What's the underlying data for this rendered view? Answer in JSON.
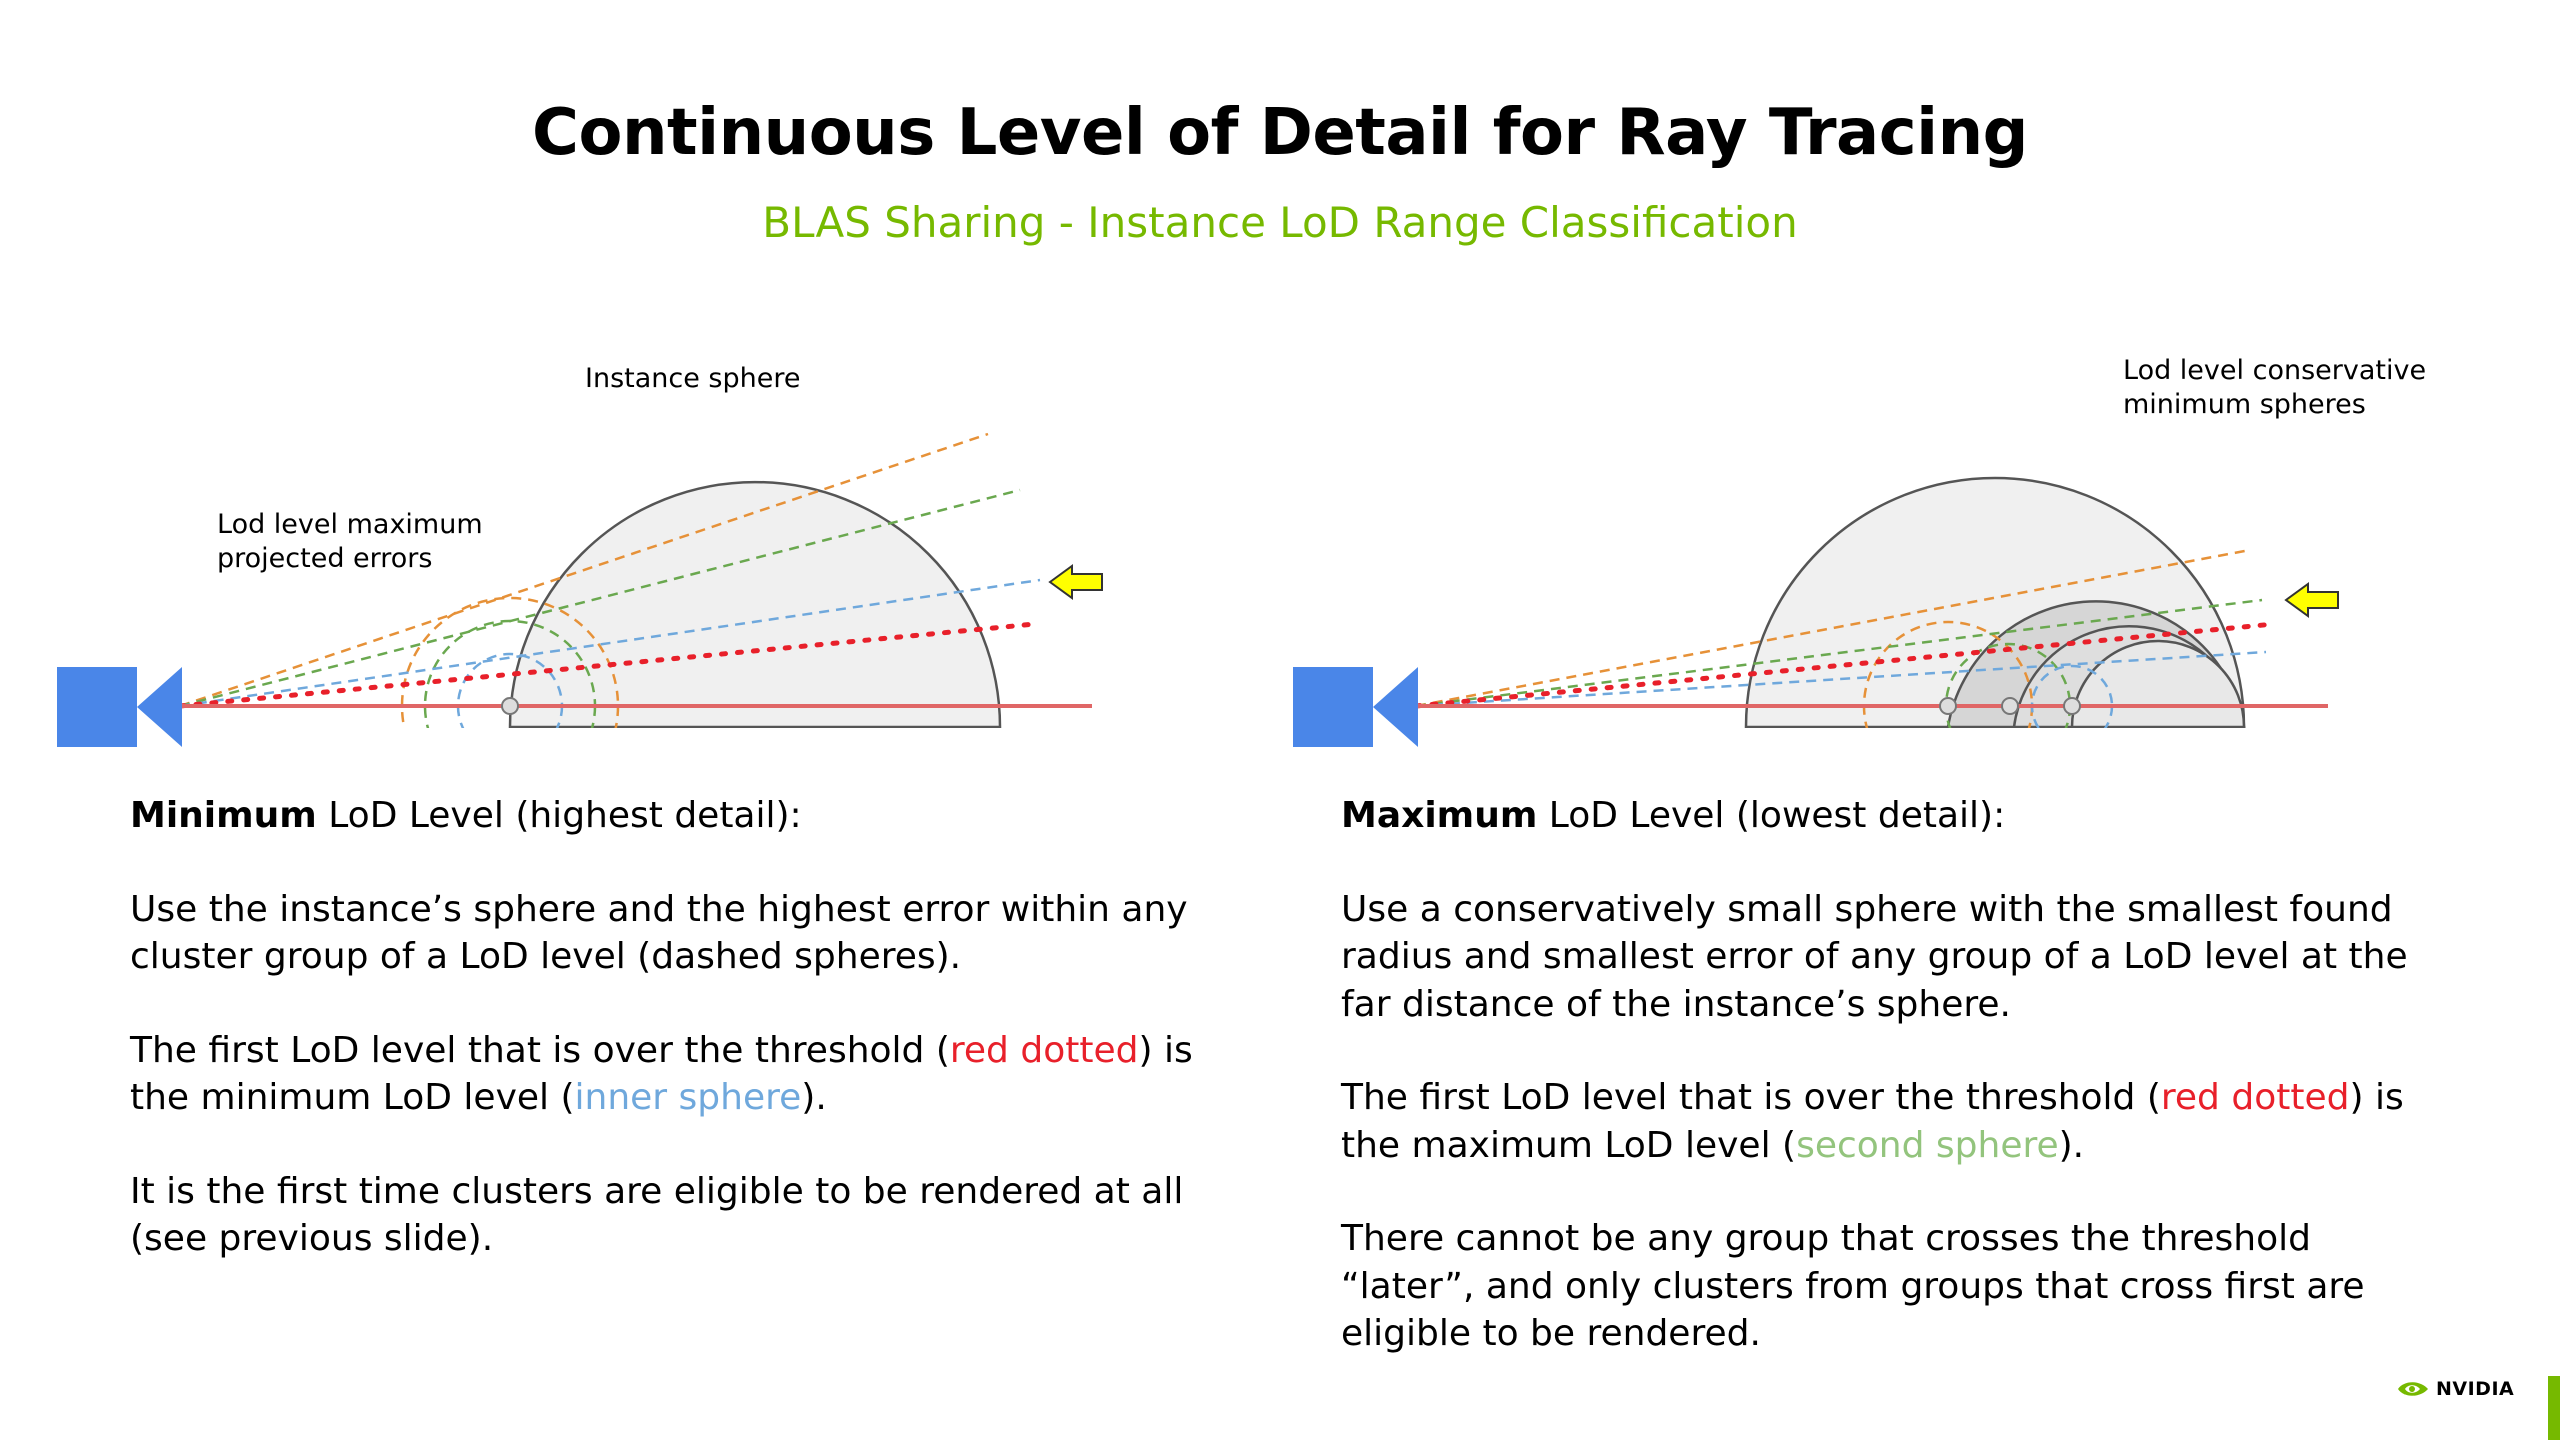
{
  "slide": {
    "title": "Continuous Level of Detail for Ray Tracing",
    "subtitle": "BLAS Sharing - Instance LoD Range Classification"
  },
  "left_diagram": {
    "label_instance_sphere": "Instance sphere",
    "label_max_errors_line1": "Lod level maximum",
    "label_max_errors_line2": "projected errors"
  },
  "right_diagram": {
    "label_min_spheres_line1": "Lod level conservative",
    "label_min_spheres_line2": "minimum spheres"
  },
  "left_text": {
    "heading_bold": "Minimum",
    "heading_rest": " LoD Level (highest detail):",
    "para1": "Use the instance’s sphere and the highest error within any cluster group of a LoD level (dashed spheres).",
    "para2_a": "The first LoD level that is over the threshold (",
    "para2_red": "red dotted",
    "para2_b": ") is the minimum LoD level (",
    "para2_blue": "inner sphere",
    "para2_c": ").",
    "para3": "It is the first time clusters are eligible to be rendered at all (see previous slide)."
  },
  "right_text": {
    "heading_bold": "Maximum",
    "heading_rest": " LoD Level (lowest detail):",
    "para1": "Use a conservatively small sphere with the smallest found radius and smallest error of any group of a LoD level at the far distance of the instance’s sphere.",
    "para2_a": "The first LoD level that is over the threshold (",
    "para2_red": "red dotted",
    "para2_b": ") is the maximum LoD level (",
    "para2_green": "second sphere",
    "para2_c": ").",
    "para3": "There cannot be any group that crosses the threshold “later”, and only clusters from groups that cross first are eligible to be rendered."
  },
  "footer": {
    "logo_text": "NVIDIA"
  },
  "colors": {
    "accent_green": "#76b900",
    "red": "#e8202a",
    "blue": "#6fa8dc",
    "green": "#93c47d",
    "orange": "#e69138",
    "camera_blue": "#4a86e8",
    "arrow_yellow": "#ffff00"
  }
}
